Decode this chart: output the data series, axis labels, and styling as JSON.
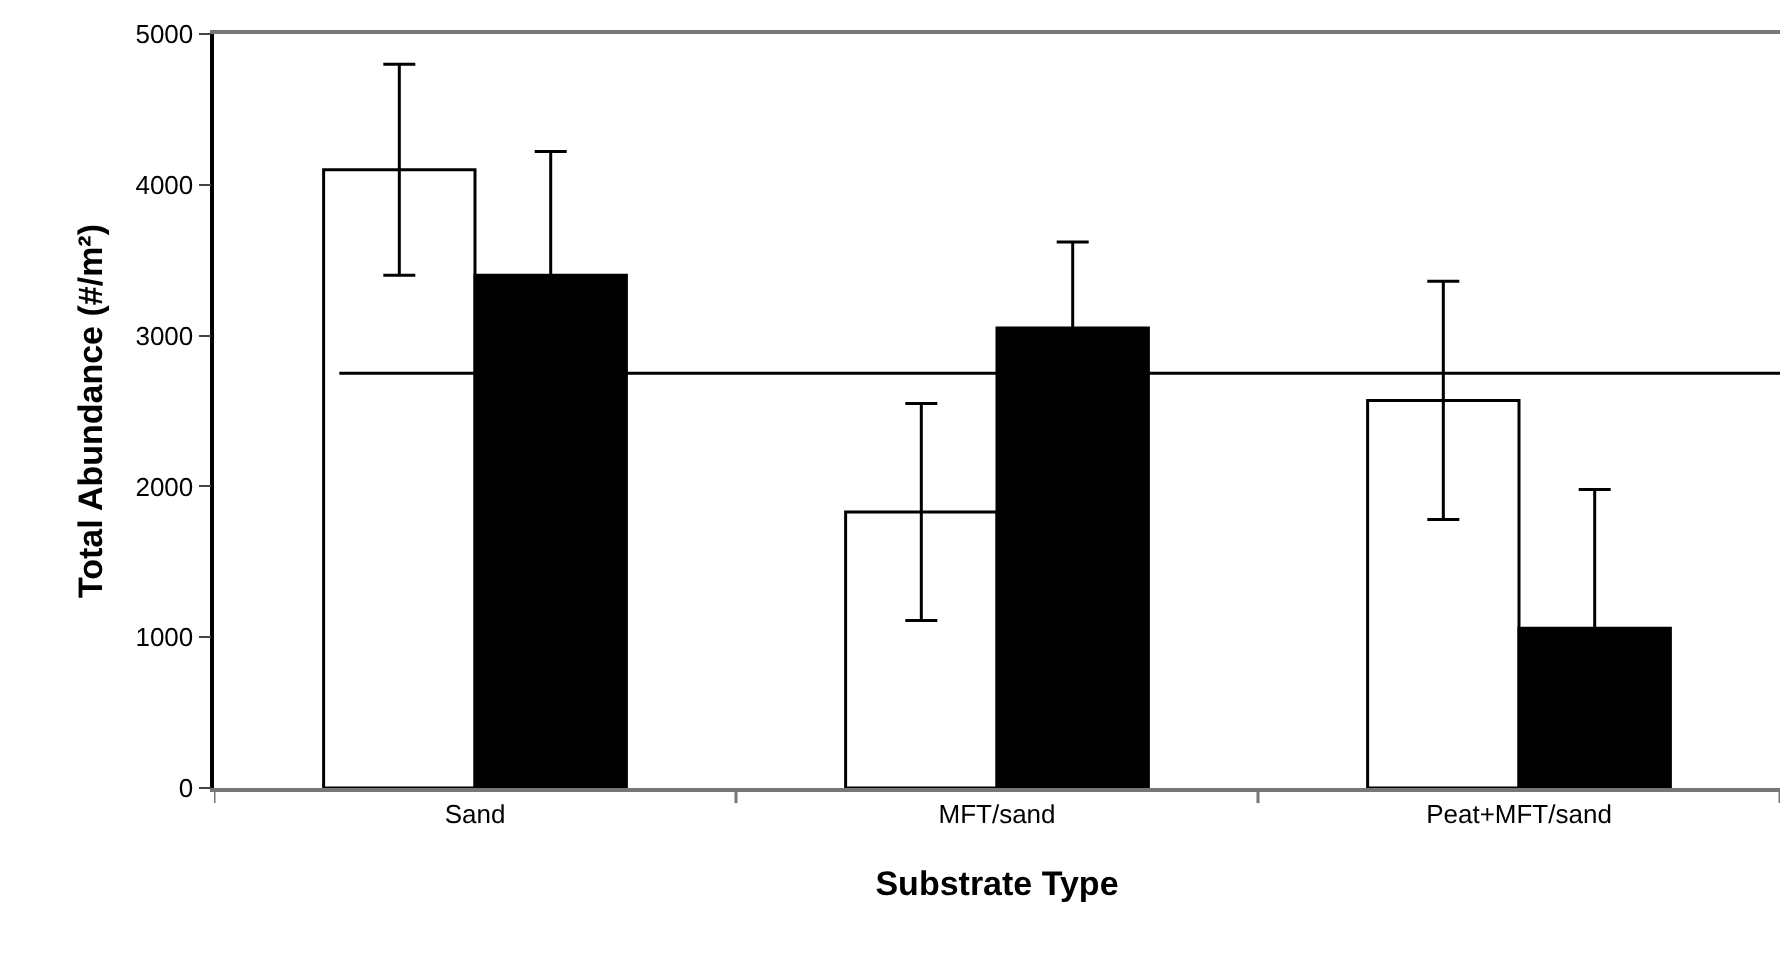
{
  "chart_data": {
    "type": "bar",
    "xlabel": "Substrate Type",
    "ylabel": "Total Abundance (#/m²)",
    "categories": [
      "Sand",
      "MFT/sand",
      "Peat+MFT/sand"
    ],
    "series": [
      {
        "color": "#ffffff",
        "values": [
          4100,
          1830,
          2570
        ],
        "errors": [
          700,
          720,
          790
        ]
      },
      {
        "color": "#000000",
        "values": [
          3400,
          3050,
          1060
        ],
        "errors": [
          820,
          570,
          920
        ]
      }
    ],
    "ylim": [
      0,
      5000
    ],
    "yticks": [
      0,
      1000,
      2000,
      3000,
      4000,
      5000
    ],
    "ref_lines": [
      {
        "axis": "y",
        "value": 2750,
        "color": "#000000"
      }
    ]
  }
}
